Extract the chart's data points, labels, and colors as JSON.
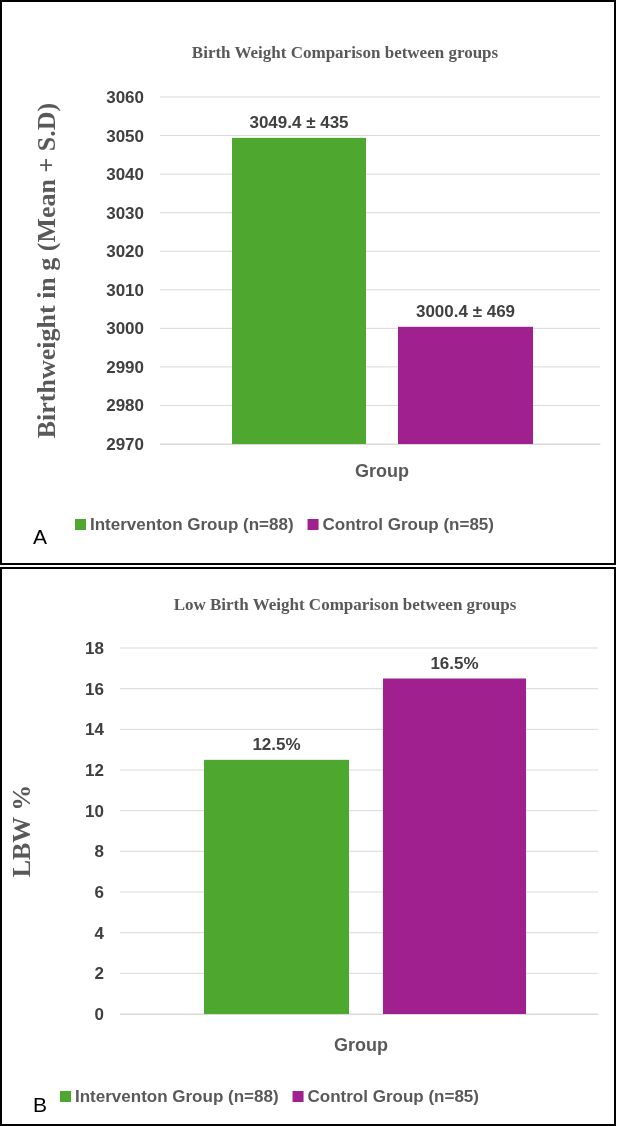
{
  "chart_data": [
    {
      "type": "bar",
      "title": "Birth Weight Comparison between groups",
      "xlabel": "Group",
      "ylabel": "Birthweight in  g (Mean + S.D)",
      "categories": [
        null
      ],
      "ylim": [
        2970,
        3060
      ],
      "yticks": [
        2970,
        2980,
        2990,
        3000,
        3010,
        3020,
        3030,
        3040,
        3050,
        3060
      ],
      "grid": "y",
      "legend": "bottom",
      "annotations": [
        "A"
      ],
      "series": [
        {
          "name": "Interventon Group (n=88)",
          "color": "#4ea72e",
          "values": [
            3049.4
          ],
          "value_labels": [
            "3049.4 ± 435"
          ]
        },
        {
          "name": "Control Group (n=85)",
          "color": "#a0208f",
          "values": [
            3000.4
          ],
          "value_labels": [
            "3000.4 ± 469"
          ]
        }
      ]
    },
    {
      "type": "bar",
      "title": "Low Birth  Weight Comparison between groups",
      "xlabel": "Group",
      "ylabel": "LBW %",
      "categories": [
        null
      ],
      "ylim": [
        0,
        18
      ],
      "yticks": [
        0,
        2,
        4,
        6,
        8,
        10,
        12,
        14,
        16,
        18
      ],
      "grid": "y",
      "legend": "bottom",
      "annotations": [
        "B"
      ],
      "series": [
        {
          "name": "Interventon Group (n=88)",
          "color": "#4ea72e",
          "values": [
            12.5
          ],
          "value_labels": [
            "12.5%"
          ]
        },
        {
          "name": "Control Group (n=85)",
          "color": "#a0208f",
          "values": [
            16.5
          ],
          "value_labels": [
            "16.5%"
          ]
        }
      ]
    }
  ]
}
